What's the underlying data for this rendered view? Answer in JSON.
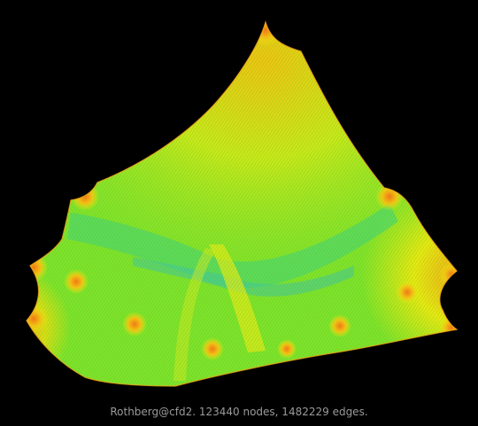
{
  "caption": "Rothberg@cfd2. 123440 nodes, 1482229 edges.",
  "colors": {
    "background": "#000000",
    "mesh_light": "#a6f03a",
    "mesh_green": "#5fe22a",
    "mesh_yellow": "#e8ea12",
    "mesh_orange": "#f39a18",
    "mesh_cyan": "#3ed68a",
    "caption": "#9a9a9a"
  }
}
